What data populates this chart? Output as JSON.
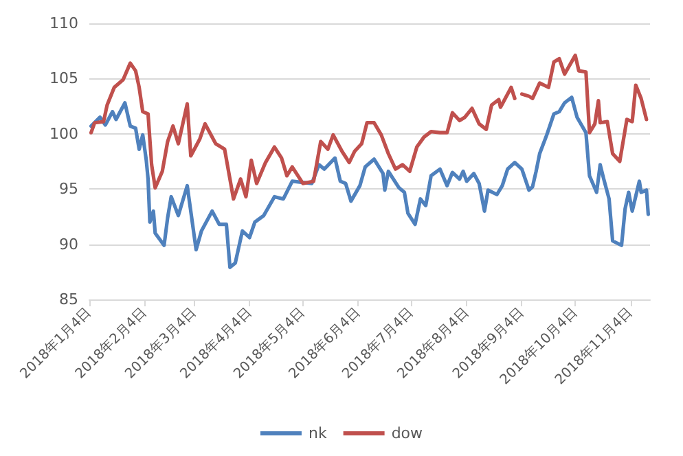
{
  "chart_data": {
    "type": "line",
    "xlim": [
      "2018-01-04",
      "2018-11-15"
    ],
    "xticks": [
      {
        "value": "2018-01-04",
        "label": "2018年1月4日"
      },
      {
        "value": "2018-02-04",
        "label": "2018年2月4日"
      },
      {
        "value": "2018-03-04",
        "label": "2018年3月4日"
      },
      {
        "value": "2018-04-04",
        "label": "2018年4月4日"
      },
      {
        "value": "2018-05-04",
        "label": "2018年5月4日"
      },
      {
        "value": "2018-06-04",
        "label": "2018年6月4日"
      },
      {
        "value": "2018-07-04",
        "label": "2018年7月4日"
      },
      {
        "value": "2018-08-04",
        "label": "2018年8月4日"
      },
      {
        "value": "2018-09-04",
        "label": "2018年9月4日"
      },
      {
        "value": "2018-10-04",
        "label": "2018年10月4日"
      },
      {
        "value": "2018-11-04",
        "label": "2018年11月4日"
      }
    ],
    "ylim": [
      85,
      110
    ],
    "yticks": [
      85,
      90,
      95,
      100,
      105,
      110
    ],
    "grid": "y",
    "legend": "bottom",
    "marker": "none",
    "line_style": "solid",
    "series": [
      {
        "name": "nk",
        "color": "#4f81bd",
        "x": [
          "2018-01-05",
          "2018-01-10",
          "2018-01-13",
          "2018-01-17",
          "2018-01-19",
          "2018-01-24",
          "2018-01-27",
          "2018-01-30",
          "2018-02-01",
          "2018-02-03",
          "2018-02-05",
          "2018-02-06",
          "2018-02-07",
          "2018-02-09",
          "2018-02-10",
          "2018-02-15",
          "2018-02-17",
          "2018-02-19",
          "2018-02-23",
          "2018-02-28",
          "2018-03-05",
          "2018-03-08",
          "2018-03-14",
          "2018-03-18",
          "2018-03-22",
          "2018-03-24",
          "2018-03-27",
          "2018-03-31",
          "2018-04-04",
          "2018-04-07",
          "2018-04-12",
          "2018-04-18",
          "2018-04-23",
          "2018-04-28",
          "2018-05-09",
          "2018-05-13",
          "2018-05-16",
          "2018-05-22",
          "2018-05-25",
          "2018-05-28",
          "2018-05-31",
          "2018-06-05",
          "2018-06-08",
          "2018-06-13",
          "2018-06-18",
          "2018-06-19",
          "2018-06-21",
          "2018-06-27",
          "2018-06-30",
          "2018-07-02",
          "2018-07-06",
          "2018-07-09",
          "2018-07-12",
          "2018-07-15",
          "2018-07-20",
          "2018-07-24",
          "2018-07-27",
          "2018-07-31",
          "2018-08-02",
          "2018-08-04",
          "2018-08-08",
          "2018-08-11",
          "2018-08-14",
          "2018-08-16",
          "2018-08-21",
          "2018-08-24",
          "2018-08-27",
          "2018-08-31",
          "2018-09-04",
          "2018-09-08",
          "2018-09-10",
          "2018-09-12",
          "2018-09-14",
          "2018-09-18",
          "2018-09-22",
          "2018-09-25",
          "2018-09-28",
          "2018-10-02",
          "2018-10-05",
          "2018-10-10",
          "2018-10-12",
          "2018-10-16",
          "2018-10-18",
          "2018-10-20",
          "2018-10-23",
          "2018-10-25",
          "2018-10-30",
          "2018-11-01",
          "2018-11-03",
          "2018-11-05",
          "2018-11-09",
          "2018-11-10",
          "2018-11-13",
          "2018-11-14"
        ],
        "values": [
          100.7,
          101.5,
          100.8,
          102.0,
          101.3,
          102.8,
          100.7,
          100.5,
          98.6,
          99.9,
          97.6,
          95.9,
          92.0,
          93.0,
          91.0,
          89.9,
          92.4,
          94.3,
          92.6,
          95.3,
          89.5,
          91.2,
          93.0,
          91.8,
          91.8,
          87.9,
          88.3,
          91.2,
          90.6,
          92.0,
          92.6,
          94.3,
          94.1,
          95.7,
          95.5,
          97.2,
          96.8,
          97.8,
          95.7,
          95.5,
          93.9,
          95.3,
          97.0,
          97.7,
          96.4,
          94.9,
          96.6,
          95.1,
          94.7,
          92.8,
          91.8,
          94.1,
          93.5,
          96.2,
          96.8,
          95.3,
          96.5,
          95.9,
          96.6,
          95.7,
          96.4,
          95.5,
          93.0,
          94.9,
          94.5,
          95.3,
          96.8,
          97.4,
          96.8,
          94.9,
          95.2,
          96.6,
          98.2,
          99.9,
          101.8,
          102.0,
          102.8,
          103.3,
          101.5,
          100.1,
          96.2,
          94.7,
          97.2,
          95.9,
          94.1,
          90.3,
          89.9,
          93.2,
          94.7,
          93.0,
          95.7,
          94.7,
          94.9,
          92.7
        ]
      },
      {
        "name": "dow",
        "color": "#c0504d",
        "x": [
          "2018-01-05",
          "2018-01-07",
          "2018-01-12",
          "2018-01-14",
          "2018-01-18",
          "2018-01-23",
          "2018-01-27",
          "2018-01-30",
          "2018-02-01",
          "2018-02-03",
          "2018-02-06",
          "2018-02-08",
          "2018-02-10",
          "2018-02-14",
          "2018-02-17",
          "2018-02-20",
          "2018-02-23",
          "2018-02-28",
          "2018-03-02",
          "2018-03-07",
          "2018-03-10",
          "2018-03-16",
          "2018-03-21",
          "2018-03-26",
          "2018-03-30",
          "2018-04-02",
          "2018-04-05",
          "2018-04-08",
          "2018-04-13",
          "2018-04-18",
          "2018-04-22",
          "2018-04-25",
          "2018-04-28",
          "2018-05-04",
          "2018-05-10",
          "2018-05-14",
          "2018-05-18",
          "2018-05-21",
          "2018-05-26",
          "2018-05-30",
          "2018-06-02",
          "2018-06-06",
          "2018-06-09",
          "2018-06-13",
          "2018-06-17",
          "2018-06-21",
          "2018-06-25",
          "2018-06-29",
          "2018-07-03",
          "2018-07-07",
          "2018-07-11",
          "2018-07-15",
          "2018-07-20",
          "2018-07-24",
          "2018-07-27",
          "2018-07-31",
          "2018-08-03",
          "2018-08-07",
          "2018-08-11",
          "2018-08-15",
          "2018-08-18",
          "2018-08-22",
          "2018-08-23",
          "2018-08-29",
          "2018-08-31",
          "2018-09-02",
          "2018-09-04",
          "2018-09-08",
          "2018-09-10",
          "2018-09-14",
          "2018-09-19",
          "2018-09-22",
          "2018-09-25",
          "2018-09-28",
          "2018-10-04",
          "2018-10-06",
          "2018-10-10",
          "2018-10-12",
          "2018-10-15",
          "2018-10-17",
          "2018-10-18",
          "2018-10-22",
          "2018-10-25",
          "2018-10-29",
          "2018-11-02",
          "2018-11-05",
          "2018-11-07",
          "2018-11-10",
          "2018-11-13"
        ],
        "values": [
          100.1,
          101.0,
          101.1,
          102.6,
          104.2,
          104.9,
          106.4,
          105.7,
          104.2,
          102.0,
          101.8,
          97.2,
          95.1,
          96.6,
          99.3,
          100.7,
          99.1,
          102.7,
          98.0,
          99.5,
          100.9,
          99.1,
          98.6,
          94.1,
          95.9,
          94.3,
          97.6,
          95.5,
          97.4,
          98.8,
          97.8,
          96.2,
          97.0,
          95.5,
          95.7,
          99.3,
          98.6,
          99.9,
          98.4,
          97.4,
          98.4,
          99.1,
          101.0,
          101.0,
          99.9,
          98.2,
          96.8,
          97.2,
          96.6,
          98.8,
          99.7,
          100.2,
          100.1,
          100.1,
          101.9,
          101.2,
          101.5,
          102.3,
          100.9,
          100.4,
          102.6,
          103.1,
          102.4,
          104.2,
          103.2,
          null,
          103.6,
          103.4,
          103.2,
          104.6,
          104.2,
          106.5,
          106.8,
          105.4,
          107.1,
          105.7,
          105.6,
          100.1,
          100.9,
          103.0,
          101.0,
          101.1,
          98.2,
          97.5,
          101.3,
          101.1,
          104.4,
          103.2,
          101.3
        ]
      }
    ]
  }
}
